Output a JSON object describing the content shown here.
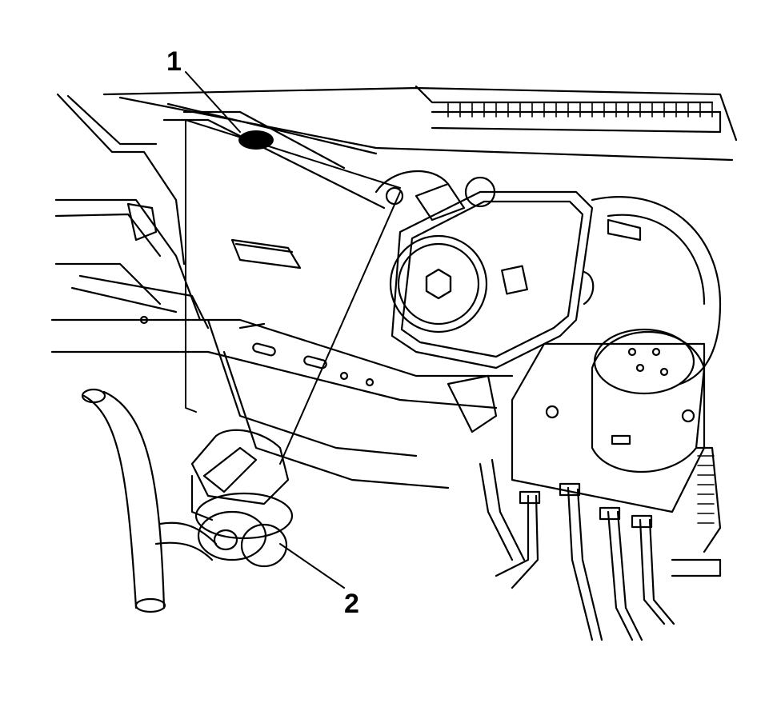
{
  "callouts": [
    {
      "number": "1"
    },
    {
      "number": "2"
    }
  ],
  "colors": {
    "line": "#000000",
    "fill": "#ffffff"
  }
}
